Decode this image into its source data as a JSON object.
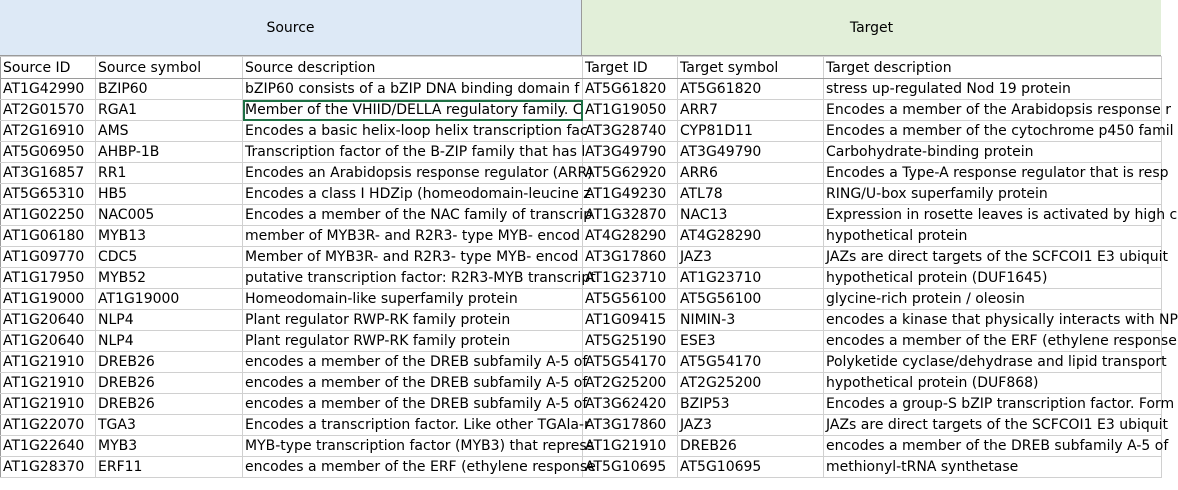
{
  "groups": {
    "source": "Source",
    "target": "Target"
  },
  "headers": [
    "Source ID",
    "Source symbol",
    "Source description",
    "Target ID",
    "Target symbol",
    "Target description"
  ],
  "rows": [
    [
      "AT1G42990",
      "BZIP60",
      "bZIP60 consists of a bZIP DNA binding domain f",
      "AT5G61820",
      "AT5G61820",
      "stress up-regulated Nod 19 protein"
    ],
    [
      "AT2G01570",
      "RGA1",
      "Member of the VHIID/DELLA regulatory family. C",
      "AT1G19050",
      "ARR7",
      "Encodes a member of the Arabidopsis response r"
    ],
    [
      "AT2G16910",
      "AMS",
      "Encodes a basic helix-loop helix transcription fac",
      "AT3G28740",
      "CYP81D11",
      "Encodes a member of the cytochrome p450 famil"
    ],
    [
      "AT5G06950",
      "AHBP-1B",
      "Transcription factor of the B-ZIP family that has l",
      "AT3G49790",
      "AT3G49790",
      "Carbohydrate-binding protein"
    ],
    [
      "AT3G16857",
      "RR1",
      "Encodes an Arabidopsis response regulator (ARR)",
      "AT5G62920",
      "ARR6",
      "Encodes a Type-A response regulator that is resp"
    ],
    [
      "AT5G65310",
      "HB5",
      "Encodes a class I HDZip (homeodomain-leucine z",
      "AT1G49230",
      "ATL78",
      "RING/U-box superfamily protein"
    ],
    [
      "AT1G02250",
      "NAC005",
      "Encodes a member of the NAC family of transcrip",
      "AT1G32870",
      "NAC13",
      "Expression in rosette leaves is activated by high c"
    ],
    [
      "AT1G06180",
      "MYB13",
      "member of MYB3R- and R2R3- type MYB- encod",
      "AT4G28290",
      "AT4G28290",
      "hypothetical protein"
    ],
    [
      "AT1G09770",
      "CDC5",
      "Member of MYB3R- and R2R3- type MYB- encod",
      "AT3G17860",
      "JAZ3",
      "JAZs are direct targets of the SCFCOI1 E3 ubiquit"
    ],
    [
      "AT1G17950",
      "MYB52",
      "putative transcription factor: R2R3-MYB transcript",
      "AT1G23710",
      "AT1G23710",
      "hypothetical protein (DUF1645)"
    ],
    [
      "AT1G19000",
      "AT1G19000",
      "Homeodomain-like superfamily protein",
      "AT5G56100",
      "AT5G56100",
      "glycine-rich protein / oleosin"
    ],
    [
      "AT1G20640",
      "NLP4",
      "Plant regulator RWP-RK family protein",
      "AT1G09415",
      "NIMIN-3",
      "encodes a kinase that physically interacts with NP"
    ],
    [
      "AT1G20640",
      "NLP4",
      "Plant regulator RWP-RK family protein",
      "AT5G25190",
      "ESE3",
      "encodes a member of the ERF (ethylene response"
    ],
    [
      "AT1G21910",
      "DREB26",
      "encodes a member of the DREB subfamily A-5 of",
      "AT5G54170",
      "AT5G54170",
      "Polyketide cyclase/dehydrase and lipid transport"
    ],
    [
      "AT1G21910",
      "DREB26",
      "encodes a member of the DREB subfamily A-5 of",
      "AT2G25200",
      "AT2G25200",
      "hypothetical protein (DUF868)"
    ],
    [
      "AT1G21910",
      "DREB26",
      "encodes a member of the DREB subfamily A-5 of",
      "AT3G62420",
      "BZIP53",
      "Encodes a group-S bZIP transcription factor. Form"
    ],
    [
      "AT1G22070",
      "TGA3",
      "Encodes a transcription factor. Like other TGAla-r",
      "AT3G17860",
      "JAZ3",
      "JAZs are direct targets of the SCFCOI1 E3 ubiquit"
    ],
    [
      "AT1G22640",
      "MYB3",
      "MYB-type transcription factor (MYB3) that repress",
      "AT1G21910",
      "DREB26",
      "encodes a member of the DREB subfamily A-5 of"
    ],
    [
      "AT1G28370",
      "ERF11",
      "encodes a member of the ERF (ethylene response",
      "AT5G10695",
      "AT5G10695",
      "methionyl-tRNA synthetase"
    ]
  ],
  "selected_cell": [
    1,
    2
  ],
  "colors": {
    "source_band": "#dde9f6",
    "target_band": "#e2efd9",
    "gridline": "#d0d0d0",
    "selection": "#1e7145"
  }
}
